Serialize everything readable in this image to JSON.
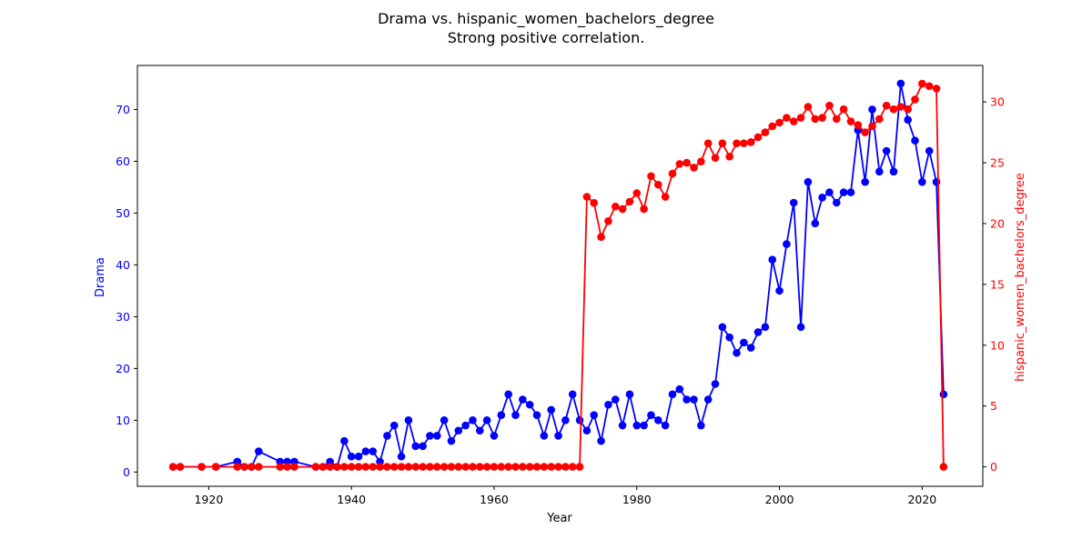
{
  "chart_data": {
    "type": "line",
    "title": "Drama vs. hispanic_women_bachelors_degree",
    "subtitle": "Strong positive correlation.",
    "xlabel": "Year",
    "ylabel_left": "Drama",
    "ylabel_right": "hispanic_women_bachelors_degree",
    "xlim": [
      1910,
      2028.5
    ],
    "ylim_left": [
      -2.75,
      78.5
    ],
    "ylim_right": [
      -1.6,
      33.0
    ],
    "xticks": [
      1920,
      1940,
      1960,
      1980,
      2000,
      2020
    ],
    "yticks_left": [
      0,
      10,
      20,
      30,
      40,
      50,
      60,
      70
    ],
    "yticks_right": [
      0,
      5,
      10,
      15,
      20,
      25,
      30
    ],
    "grid": false,
    "series": [
      {
        "axis": "left",
        "color": "#0000ff",
        "points": [
          [
            1915,
            1
          ],
          [
            1916,
            1
          ],
          [
            1919,
            1
          ],
          [
            1921,
            1
          ],
          [
            1924,
            2
          ],
          [
            1925,
            1
          ],
          [
            1926,
            1
          ],
          [
            1927,
            4
          ],
          [
            1930,
            2
          ],
          [
            1931,
            2
          ],
          [
            1932,
            2
          ],
          [
            1935,
            1
          ],
          [
            1936,
            1
          ],
          [
            1937,
            2
          ],
          [
            1938,
            1
          ],
          [
            1939,
            6
          ],
          [
            1940,
            3
          ],
          [
            1941,
            3
          ],
          [
            1942,
            4
          ],
          [
            1943,
            4
          ],
          [
            1944,
            2
          ],
          [
            1945,
            7
          ],
          [
            1946,
            9
          ],
          [
            1947,
            3
          ],
          [
            1948,
            10
          ],
          [
            1949,
            5
          ],
          [
            1950,
            5
          ],
          [
            1951,
            7
          ],
          [
            1952,
            7
          ],
          [
            1953,
            10
          ],
          [
            1954,
            6
          ],
          [
            1955,
            8
          ],
          [
            1956,
            9
          ],
          [
            1957,
            10
          ],
          [
            1958,
            8
          ],
          [
            1959,
            10
          ],
          [
            1960,
            7
          ],
          [
            1961,
            11
          ],
          [
            1962,
            15
          ],
          [
            1963,
            11
          ],
          [
            1964,
            14
          ],
          [
            1965,
            13
          ],
          [
            1966,
            11
          ],
          [
            1967,
            7
          ],
          [
            1968,
            12
          ],
          [
            1969,
            7
          ],
          [
            1970,
            10
          ],
          [
            1971,
            15
          ],
          [
            1972,
            10
          ],
          [
            1973,
            8
          ],
          [
            1974,
            11
          ],
          [
            1975,
            6
          ],
          [
            1976,
            13
          ],
          [
            1977,
            14
          ],
          [
            1978,
            9
          ],
          [
            1979,
            15
          ],
          [
            1980,
            9
          ],
          [
            1981,
            9
          ],
          [
            1982,
            11
          ],
          [
            1983,
            10
          ],
          [
            1984,
            9
          ],
          [
            1985,
            15
          ],
          [
            1986,
            16
          ],
          [
            1987,
            14
          ],
          [
            1988,
            14
          ],
          [
            1989,
            9
          ],
          [
            1990,
            14
          ],
          [
            1991,
            17
          ],
          [
            1992,
            28
          ],
          [
            1993,
            26
          ],
          [
            1994,
            23
          ],
          [
            1995,
            25
          ],
          [
            1996,
            24
          ],
          [
            1997,
            27
          ],
          [
            1998,
            28
          ],
          [
            1999,
            41
          ],
          [
            2000,
            35
          ],
          [
            2001,
            44
          ],
          [
            2002,
            52
          ],
          [
            2003,
            28
          ],
          [
            2004,
            56
          ],
          [
            2005,
            48
          ],
          [
            2006,
            53
          ],
          [
            2007,
            54
          ],
          [
            2008,
            52
          ],
          [
            2009,
            54
          ],
          [
            2010,
            54
          ],
          [
            2011,
            66
          ],
          [
            2012,
            56
          ],
          [
            2013,
            70
          ],
          [
            2014,
            58
          ],
          [
            2015,
            62
          ],
          [
            2016,
            58
          ],
          [
            2017,
            75
          ],
          [
            2018,
            68
          ],
          [
            2019,
            64
          ],
          [
            2020,
            56
          ],
          [
            2021,
            62
          ],
          [
            2022,
            56
          ],
          [
            2023,
            15
          ]
        ]
      },
      {
        "axis": "right",
        "color": "#ff0000",
        "points": [
          [
            1915,
            0
          ],
          [
            1916,
            0
          ],
          [
            1919,
            0
          ],
          [
            1921,
            0
          ],
          [
            1924,
            0
          ],
          [
            1925,
            0
          ],
          [
            1926,
            0
          ],
          [
            1927,
            0
          ],
          [
            1930,
            0
          ],
          [
            1931,
            0
          ],
          [
            1932,
            0
          ],
          [
            1935,
            0
          ],
          [
            1936,
            0
          ],
          [
            1937,
            0
          ],
          [
            1938,
            0
          ],
          [
            1939,
            0
          ],
          [
            1940,
            0
          ],
          [
            1941,
            0
          ],
          [
            1942,
            0
          ],
          [
            1943,
            0
          ],
          [
            1944,
            0
          ],
          [
            1945,
            0
          ],
          [
            1946,
            0
          ],
          [
            1947,
            0
          ],
          [
            1948,
            0
          ],
          [
            1949,
            0
          ],
          [
            1950,
            0
          ],
          [
            1951,
            0
          ],
          [
            1952,
            0
          ],
          [
            1953,
            0
          ],
          [
            1954,
            0
          ],
          [
            1955,
            0
          ],
          [
            1956,
            0
          ],
          [
            1957,
            0
          ],
          [
            1958,
            0
          ],
          [
            1959,
            0
          ],
          [
            1960,
            0
          ],
          [
            1961,
            0
          ],
          [
            1962,
            0
          ],
          [
            1963,
            0
          ],
          [
            1964,
            0
          ],
          [
            1965,
            0
          ],
          [
            1966,
            0
          ],
          [
            1967,
            0
          ],
          [
            1968,
            0
          ],
          [
            1969,
            0
          ],
          [
            1970,
            0
          ],
          [
            1971,
            0
          ],
          [
            1972,
            0
          ],
          [
            1973,
            22.2
          ],
          [
            1974,
            21.7
          ],
          [
            1975,
            18.9
          ],
          [
            1976,
            20.2
          ],
          [
            1977,
            21.4
          ],
          [
            1978,
            21.2
          ],
          [
            1979,
            21.8
          ],
          [
            1980,
            22.5
          ],
          [
            1981,
            21.2
          ],
          [
            1982,
            23.9
          ],
          [
            1983,
            23.2
          ],
          [
            1984,
            22.2
          ],
          [
            1985,
            24.1
          ],
          [
            1986,
            24.9
          ],
          [
            1987,
            25.0
          ],
          [
            1988,
            24.6
          ],
          [
            1989,
            25.1
          ],
          [
            1990,
            26.6
          ],
          [
            1991,
            25.4
          ],
          [
            1992,
            26.6
          ],
          [
            1993,
            25.5
          ],
          [
            1994,
            26.6
          ],
          [
            1995,
            26.6
          ],
          [
            1996,
            26.7
          ],
          [
            1997,
            27.1
          ],
          [
            1998,
            27.5
          ],
          [
            1999,
            28.0
          ],
          [
            2000,
            28.3
          ],
          [
            2001,
            28.7
          ],
          [
            2002,
            28.4
          ],
          [
            2003,
            28.7
          ],
          [
            2004,
            29.6
          ],
          [
            2005,
            28.6
          ],
          [
            2006,
            28.7
          ],
          [
            2007,
            29.7
          ],
          [
            2008,
            28.6
          ],
          [
            2009,
            29.4
          ],
          [
            2010,
            28.4
          ],
          [
            2011,
            28.1
          ],
          [
            2012,
            27.5
          ],
          [
            2013,
            28.0
          ],
          [
            2014,
            28.6
          ],
          [
            2015,
            29.7
          ],
          [
            2016,
            29.4
          ],
          [
            2017,
            29.6
          ],
          [
            2018,
            29.4
          ],
          [
            2019,
            30.2
          ],
          [
            2020,
            31.5
          ],
          [
            2021,
            31.3
          ],
          [
            2022,
            31.1
          ],
          [
            2023,
            0
          ]
        ]
      }
    ]
  }
}
